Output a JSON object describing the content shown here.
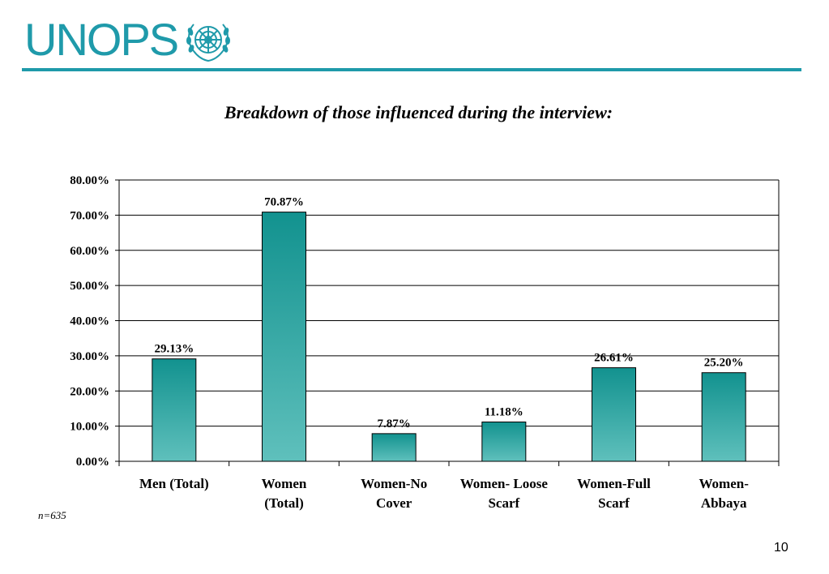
{
  "brand": {
    "name": "UNOPS",
    "color": "#1f9aaa"
  },
  "slide": {
    "page_number": "10",
    "sample_note": "n=635"
  },
  "chart_data": {
    "type": "bar",
    "title": "Breakdown of those influenced during the interview:",
    "xlabel": "",
    "ylabel": "",
    "categories": [
      [
        "Men (Total)"
      ],
      [
        "Women",
        "(Total)"
      ],
      [
        "Women-No",
        "Cover"
      ],
      [
        "Women- Loose",
        "Scarf"
      ],
      [
        "Women-Full",
        "Scarf"
      ],
      [
        "Women-",
        "Abbaya"
      ]
    ],
    "values": [
      29.13,
      70.87,
      7.87,
      11.18,
      26.61,
      25.2
    ],
    "data_labels": [
      "29.13%",
      "70.87%",
      "7.87%",
      "11.18%",
      "26.61%",
      "25.20%"
    ],
    "ylim": [
      0,
      80
    ],
    "yticks": [
      0,
      10,
      20,
      30,
      40,
      50,
      60,
      70,
      80
    ],
    "ytick_labels": [
      "0.00%",
      "10.00%",
      "20.00%",
      "30.00%",
      "40.00%",
      "50.00%",
      "60.00%",
      "70.00%",
      "80.00%"
    ],
    "grid": true,
    "legend": "none",
    "bar_color_top": "#12928f",
    "bar_color_bottom": "#5fc0bc"
  }
}
